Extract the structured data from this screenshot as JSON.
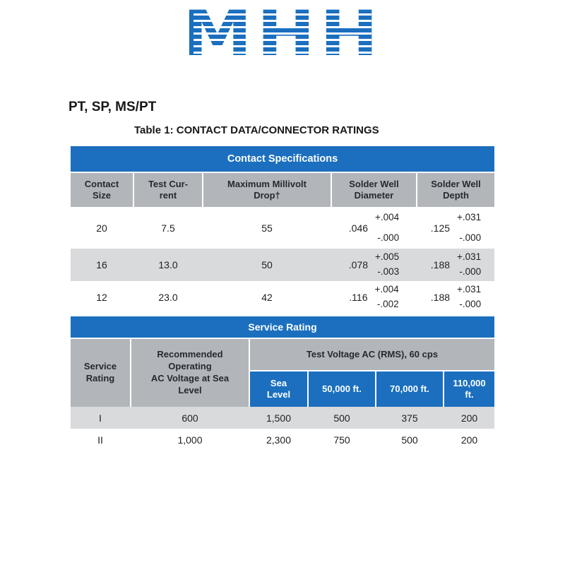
{
  "logo": {
    "text": "MHH"
  },
  "page": {
    "series_title": "PT, SP, MS/PT",
    "table_title": "Table 1: CONTACT DATA/CONNECTOR RATINGS"
  },
  "colors": {
    "accent_blue": "#1b6fbe",
    "header_gray": "#b2b6ba",
    "stripe_gray": "#d9dadc"
  },
  "contact_table": {
    "section_title": "Contact Specifications",
    "headers": [
      "Contact\nSize",
      "Test Cur-\nrent",
      "Maximum Millivolt\nDrop†",
      "Solder Well\nDiameter",
      "Solder Well\nDepth"
    ],
    "rows": [
      {
        "size": "20",
        "current": "7.5",
        "drop": "55",
        "dia": ".046",
        "dia_plus": "+.004",
        "dia_minus": "-.000",
        "depth": ".125",
        "depth_plus": "+.031",
        "depth_minus": "-.000"
      },
      {
        "size": "16",
        "current": "13.0",
        "drop": "50",
        "dia": ".078",
        "dia_plus": "+.005",
        "dia_minus": "-.003",
        "depth": ".188",
        "depth_plus": "+.031",
        "depth_minus": "-.000"
      },
      {
        "size": "12",
        "current": "23.0",
        "drop": "42",
        "dia": ".116",
        "dia_plus": "+.004",
        "dia_minus": "-.002",
        "depth": ".188",
        "depth_plus": "+.031",
        "depth_minus": "-.000"
      }
    ]
  },
  "service_table": {
    "section_title": "Service Rating",
    "col_service": "Service\nRating",
    "col_recommended": "Recommended\nOperating\nAC Voltage at Sea\nLevel",
    "col_test_voltage": "Test Voltage AC (RMS), 60 cps",
    "subheaders": [
      "Sea\nLevel",
      "50,000 ft.",
      "70,000 ft.",
      "110,000\nft."
    ],
    "rows": [
      {
        "rating": "I",
        "recommended": "600",
        "sea": "1,500",
        "ft50": "500",
        "ft70": "375",
        "ft110": "200"
      },
      {
        "rating": "II",
        "recommended": "1,000",
        "sea": "2,300",
        "ft50": "750",
        "ft70": "500",
        "ft110": "200"
      }
    ]
  }
}
